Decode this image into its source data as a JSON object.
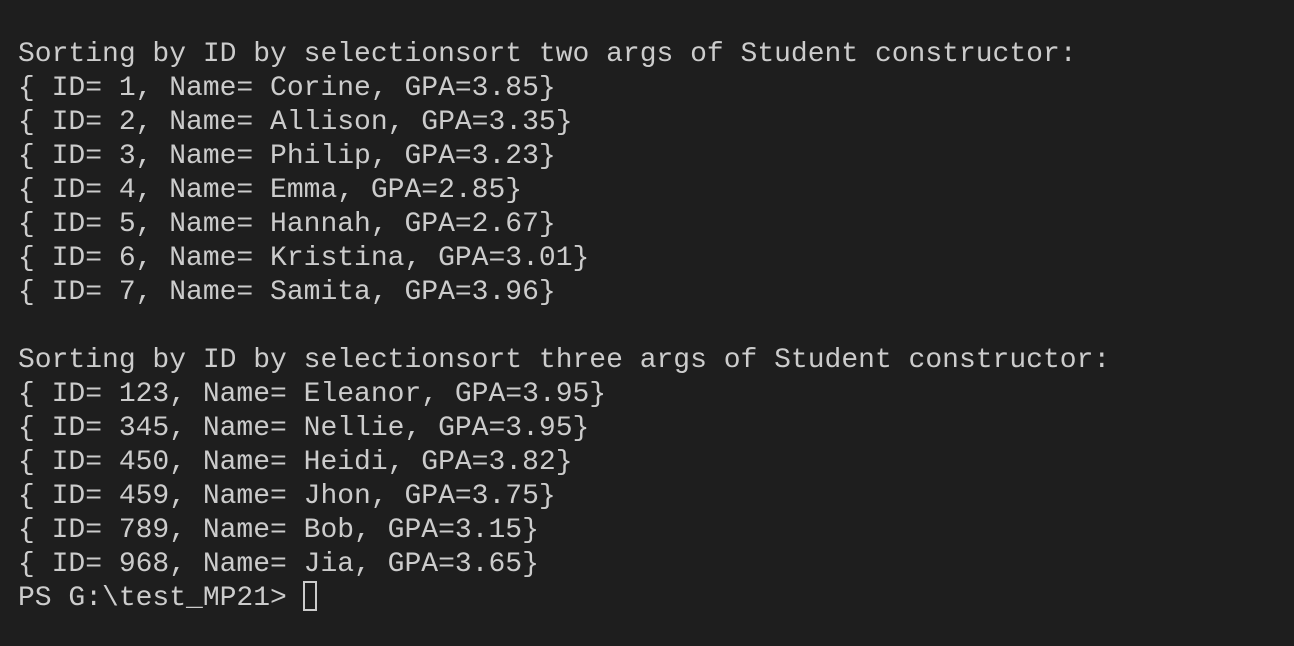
{
  "terminal": {
    "sections": [
      {
        "heading": "Sorting by ID by selectionsort two args of Student constructor:",
        "lines": [
          "{ ID= 1, Name= Corine, GPA=3.85}",
          "{ ID= 2, Name= Allison, GPA=3.35}",
          "{ ID= 3, Name= Philip, GPA=3.23}",
          "{ ID= 4, Name= Emma, GPA=2.85}",
          "{ ID= 5, Name= Hannah, GPA=2.67}",
          "{ ID= 6, Name= Kristina, GPA=3.01}",
          "{ ID= 7, Name= Samita, GPA=3.96}"
        ]
      },
      {
        "heading": "Sorting by ID by selectionsort three args of Student constructor:",
        "lines": [
          "{ ID= 123, Name= Eleanor, GPA=3.95}",
          "{ ID= 345, Name= Nellie, GPA=3.95}",
          "{ ID= 450, Name= Heidi, GPA=3.82}",
          "{ ID= 459, Name= Jhon, GPA=3.75}",
          "{ ID= 789, Name= Bob, GPA=3.15}",
          "{ ID= 968, Name= Jia, GPA=3.65}"
        ]
      }
    ],
    "prompt": "PS G:\\test_MP21>"
  }
}
